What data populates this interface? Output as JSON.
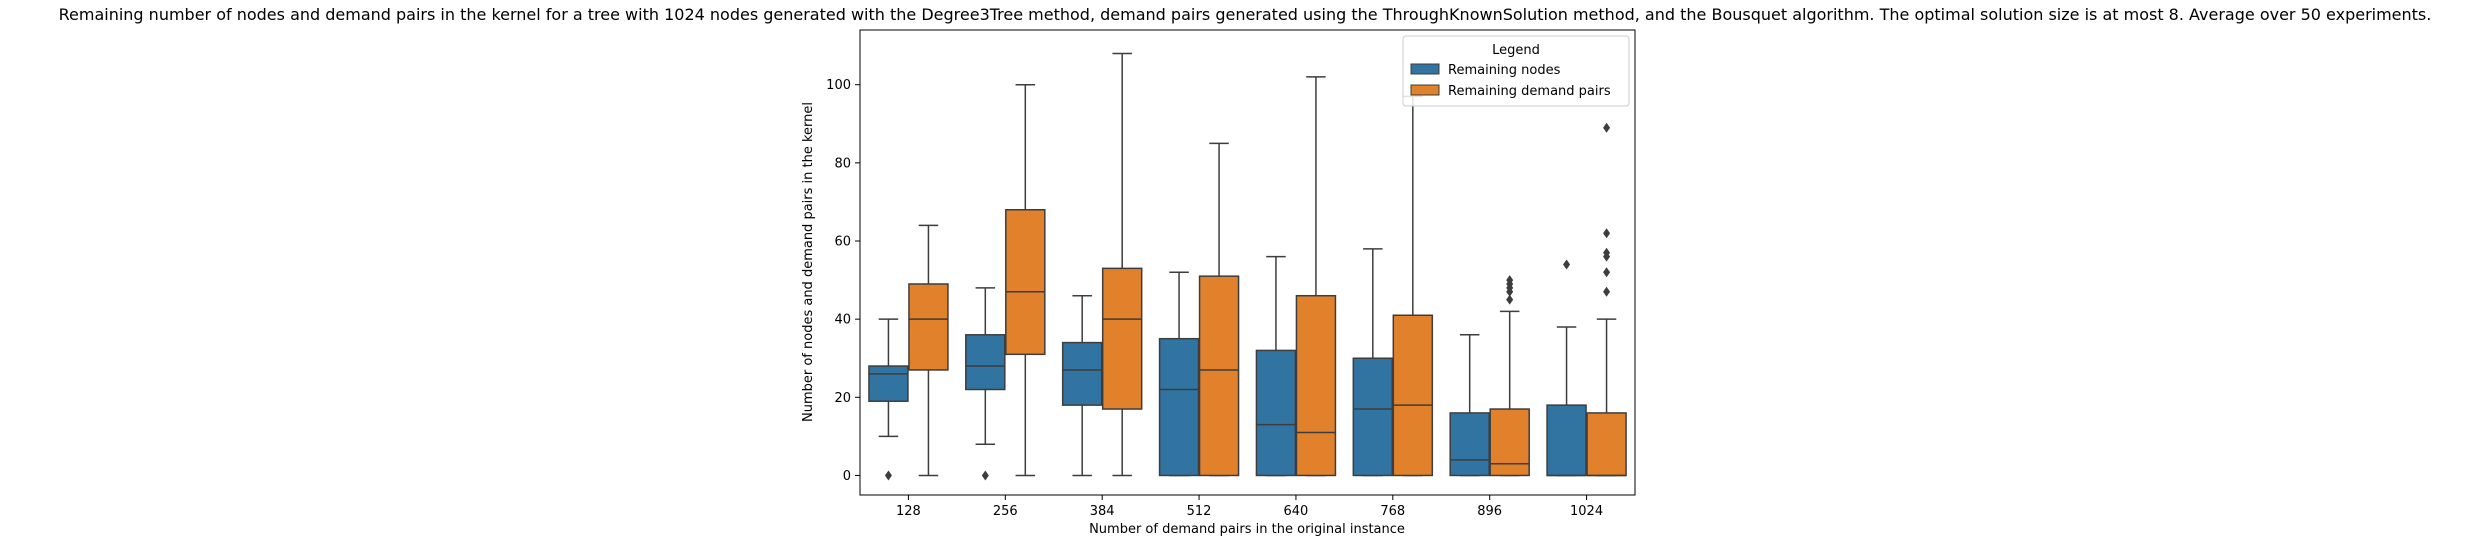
{
  "chart_data": {
    "type": "box",
    "title": "Remaining number of nodes and demand pairs in the kernel for a tree with 1024 nodes generated with the Degree3Tree method, demand pairs generated using the ThroughKnownSolution method, and the Bousquet algorithm. The optimal solution size is at most 8. Average over 50 experiments.",
    "xlabel": "Number of demand pairs in the original instance",
    "ylabel": "Number of nodes and demand pairs in the kernel",
    "categories": [
      "128",
      "256",
      "384",
      "512",
      "640",
      "768",
      "896",
      "1024"
    ],
    "ylim": [
      -5,
      114
    ],
    "yticks": [
      0,
      20,
      40,
      60,
      80,
      100
    ],
    "grid": false,
    "legend": {
      "title": "Legend",
      "position": "top-right"
    },
    "series": [
      {
        "name": "Remaining nodes",
        "color": "#1f77b4",
        "fill": "#3274a1",
        "boxes": [
          {
            "whislo": 10,
            "q1": 19,
            "med": 26,
            "q3": 28,
            "whishi": 40,
            "fliers": [
              0
            ]
          },
          {
            "whislo": 8,
            "q1": 22,
            "med": 28,
            "q3": 36,
            "whishi": 48,
            "fliers": [
              0
            ]
          },
          {
            "whislo": 0,
            "q1": 18,
            "med": 27,
            "q3": 34,
            "whishi": 46,
            "fliers": []
          },
          {
            "whislo": 0,
            "q1": 0,
            "med": 22,
            "q3": 35,
            "whishi": 52,
            "fliers": []
          },
          {
            "whislo": 0,
            "q1": 0,
            "med": 13,
            "q3": 32,
            "whishi": 56,
            "fliers": []
          },
          {
            "whislo": 0,
            "q1": 0,
            "med": 17,
            "q3": 30,
            "whishi": 58,
            "fliers": []
          },
          {
            "whislo": 0,
            "q1": 0,
            "med": 4,
            "q3": 16,
            "whishi": 36,
            "fliers": []
          },
          {
            "whislo": 0,
            "q1": 0,
            "med": 0,
            "q3": 18,
            "whishi": 38,
            "fliers": [
              54
            ]
          }
        ]
      },
      {
        "name": "Remaining demand pairs",
        "color": "#ff7f0e",
        "fill": "#e1812c",
        "boxes": [
          {
            "whislo": 0,
            "q1": 27,
            "med": 40,
            "q3": 49,
            "whishi": 64,
            "fliers": []
          },
          {
            "whislo": 0,
            "q1": 31,
            "med": 47,
            "q3": 68,
            "whishi": 100,
            "fliers": []
          },
          {
            "whislo": 0,
            "q1": 17,
            "med": 40,
            "q3": 53,
            "whishi": 108,
            "fliers": []
          },
          {
            "whislo": 0,
            "q1": 0,
            "med": 27,
            "q3": 51,
            "whishi": 85,
            "fliers": []
          },
          {
            "whislo": 0,
            "q1": 0,
            "med": 11,
            "q3": 46,
            "whishi": 102,
            "fliers": []
          },
          {
            "whislo": 0,
            "q1": 0,
            "med": 18,
            "q3": 41,
            "whishi": 97,
            "fliers": []
          },
          {
            "whislo": 0,
            "q1": 0,
            "med": 3,
            "q3": 17,
            "whishi": 42,
            "fliers": [
              45,
              47,
              48,
              49,
              50
            ]
          },
          {
            "whislo": 0,
            "q1": 0,
            "med": 0,
            "q3": 16,
            "whishi": 40,
            "fliers": [
              47,
              52,
              56,
              57,
              62,
              89
            ]
          }
        ]
      }
    ]
  }
}
